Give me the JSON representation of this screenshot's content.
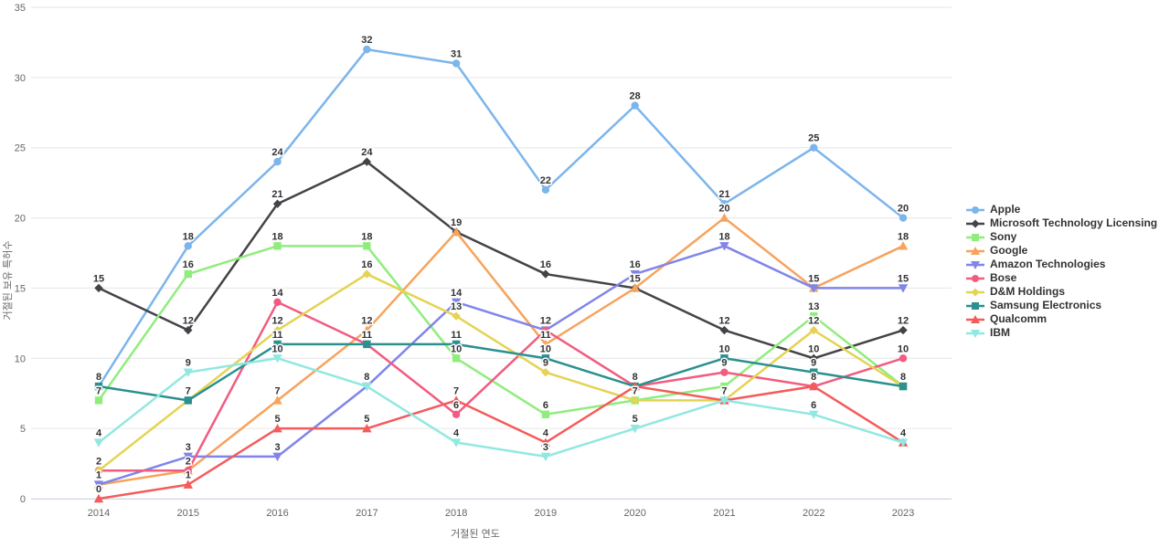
{
  "chart_data": {
    "type": "line",
    "title": "",
    "xlabel": "거절된 연도",
    "ylabel": "거절된 보유 특허수",
    "x": [
      2014,
      2015,
      2016,
      2017,
      2018,
      2019,
      2020,
      2021,
      2022,
      2023
    ],
    "ylim": [
      0,
      35
    ],
    "ytick_step": 5,
    "grid": true,
    "legend_position": "right",
    "colors": {
      "grid": "#e6e6e6",
      "axis_line": "#ccd6eb",
      "tick_label": "#666666",
      "data_label": "#333333",
      "legend_text": "#333333",
      "background": "#ffffff"
    },
    "series": [
      {
        "name": "Apple",
        "color": "#7cb5ec",
        "marker": "circle",
        "values": [
          8,
          18,
          24,
          32,
          31,
          22,
          28,
          21,
          25,
          20
        ]
      },
      {
        "name": "Microsoft Technology Licensing",
        "color": "#434348",
        "marker": "diamond",
        "values": [
          15,
          12,
          21,
          24,
          19,
          16,
          15,
          12,
          10,
          12
        ]
      },
      {
        "name": "Sony",
        "color": "#90ed7d",
        "marker": "square",
        "values": [
          7,
          16,
          18,
          18,
          10,
          6,
          7,
          8,
          13,
          8
        ]
      },
      {
        "name": "Google",
        "color": "#f7a35c",
        "marker": "triangle",
        "values": [
          1,
          2,
          7,
          12,
          19,
          11,
          15,
          20,
          15,
          18
        ]
      },
      {
        "name": "Amazon Technologies",
        "color": "#8085e9",
        "marker": "triangle-down",
        "values": [
          1,
          3,
          3,
          8,
          14,
          12,
          16,
          18,
          15,
          15
        ]
      },
      {
        "name": "Bose",
        "color": "#f15c80",
        "marker": "circle",
        "values": [
          2,
          2,
          14,
          11,
          6,
          12,
          8,
          9,
          8,
          10
        ]
      },
      {
        "name": "D&M Holdings",
        "color": "#e4d354",
        "marker": "diamond",
        "values": [
          2,
          7,
          12,
          16,
          13,
          9,
          7,
          7,
          12,
          8
        ]
      },
      {
        "name": "Samsung Electronics",
        "color": "#2b908f",
        "marker": "square",
        "values": [
          8,
          7,
          11,
          11,
          11,
          10,
          8,
          10,
          9,
          8
        ]
      },
      {
        "name": "Qualcomm",
        "color": "#f45b5b",
        "marker": "triangle",
        "values": [
          0,
          1,
          5,
          5,
          7,
          4,
          8,
          7,
          8,
          4
        ]
      },
      {
        "name": "IBM",
        "color": "#91e8e1",
        "marker": "triangle-down",
        "values": [
          4,
          9,
          10,
          8,
          4,
          3,
          5,
          7,
          6,
          4
        ]
      }
    ],
    "hidden_labels": [
      [
        2,
        7
      ]
    ]
  }
}
